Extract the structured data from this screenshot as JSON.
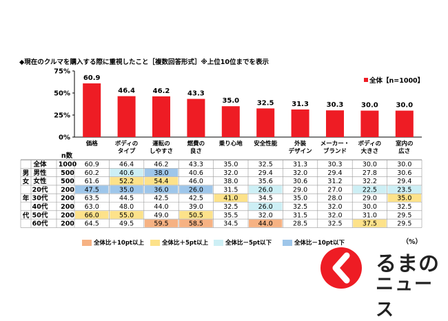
{
  "title": "◆現在のクルマを購入する際に重視したこと［複数回答形式］※上位10位までを表示",
  "legend_total": "全体【n=1000】",
  "n_header": "n数",
  "gender_group_label": "男女",
  "age_group_label": "年代",
  "percent_unit": "（%）",
  "colors": {
    "bar": "#ee1c24",
    "plus10": "#f6b283",
    "plus5": "#fde28a",
    "minus5": "#cdeff5",
    "minus10": "#9ec6ea"
  },
  "footer_legend": [
    {
      "label": "全体比＋10pt以上",
      "color": "#f6b283"
    },
    {
      "label": "全体比＋5pt以上",
      "color": "#fde28a"
    },
    {
      "label": "全体比－5pt以下",
      "color": "#cdeff5"
    },
    {
      "label": "全体比－10pt以下",
      "color": "#9ec6ea"
    }
  ],
  "logo": {
    "line1": "るまの",
    "line2": "ニュース"
  },
  "chart_data": {
    "type": "bar",
    "categories": [
      "価格",
      "ボディの\nタイプ",
      "運転の\nしやすさ",
      "燃費の\n良さ",
      "乗り心地",
      "安全性能",
      "外装\nデザイン",
      "メーカー・\nブランド",
      "ボディの\n大きさ",
      "室内の\n広さ"
    ],
    "values": [
      60.9,
      46.4,
      46.2,
      43.3,
      35.0,
      32.5,
      31.3,
      30.3,
      30.0,
      30.0
    ],
    "ylim": [
      0,
      75
    ],
    "yticks": [
      "0%",
      "25%",
      "50%",
      "75%"
    ],
    "legend": "top-right",
    "table": {
      "rows": [
        {
          "label": "全体",
          "n": "1000",
          "values": [
            "60.9",
            "46.4",
            "46.2",
            "43.3",
            "35.0",
            "32.5",
            "31.3",
            "30.3",
            "30.0",
            "30.0"
          ],
          "hl": [
            0,
            0,
            0,
            0,
            0,
            0,
            0,
            0,
            0,
            0
          ]
        },
        {
          "label": "男性",
          "n": "500",
          "values": [
            "60.2",
            "40.6",
            "38.0",
            "40.6",
            "32.0",
            "29.4",
            "32.0",
            "29.4",
            "27.8",
            "30.6"
          ],
          "hl": [
            0,
            3,
            4,
            0,
            0,
            0,
            0,
            0,
            0,
            0
          ]
        },
        {
          "label": "女性",
          "n": "500",
          "values": [
            "61.6",
            "52.2",
            "54.4",
            "46.0",
            "38.0",
            "35.6",
            "30.6",
            "31.2",
            "32.2",
            "29.4"
          ],
          "hl": [
            0,
            2,
            2,
            0,
            0,
            0,
            0,
            0,
            0,
            0
          ]
        },
        {
          "label": "20代",
          "n": "200",
          "values": [
            "47.5",
            "35.0",
            "36.0",
            "26.0",
            "31.5",
            "26.0",
            "29.0",
            "27.0",
            "22.5",
            "23.5"
          ],
          "hl": [
            4,
            4,
            4,
            4,
            0,
            3,
            0,
            0,
            3,
            3
          ]
        },
        {
          "label": "30代",
          "n": "200",
          "values": [
            "63.5",
            "44.5",
            "42.5",
            "42.5",
            "41.0",
            "34.5",
            "35.0",
            "28.0",
            "29.0",
            "35.0"
          ],
          "hl": [
            0,
            0,
            0,
            0,
            2,
            0,
            0,
            0,
            0,
            2
          ]
        },
        {
          "label": "40代",
          "n": "200",
          "values": [
            "63.0",
            "48.0",
            "44.0",
            "39.0",
            "32.5",
            "26.0",
            "32.5",
            "32.0",
            "30.0",
            "32.5"
          ],
          "hl": [
            0,
            0,
            0,
            0,
            0,
            3,
            0,
            0,
            0,
            0
          ]
        },
        {
          "label": "50代",
          "n": "200",
          "values": [
            "66.0",
            "55.0",
            "49.0",
            "50.5",
            "35.5",
            "32.0",
            "31.5",
            "32.0",
            "31.0",
            "29.5"
          ],
          "hl": [
            2,
            2,
            0,
            2,
            0,
            0,
            0,
            0,
            0,
            0
          ]
        },
        {
          "label": "60代",
          "n": "200",
          "values": [
            "64.5",
            "49.5",
            "59.5",
            "58.5",
            "34.5",
            "44.0",
            "28.5",
            "32.5",
            "37.5",
            "29.5"
          ],
          "hl": [
            0,
            0,
            1,
            1,
            0,
            1,
            0,
            0,
            2,
            0
          ]
        }
      ]
    }
  }
}
